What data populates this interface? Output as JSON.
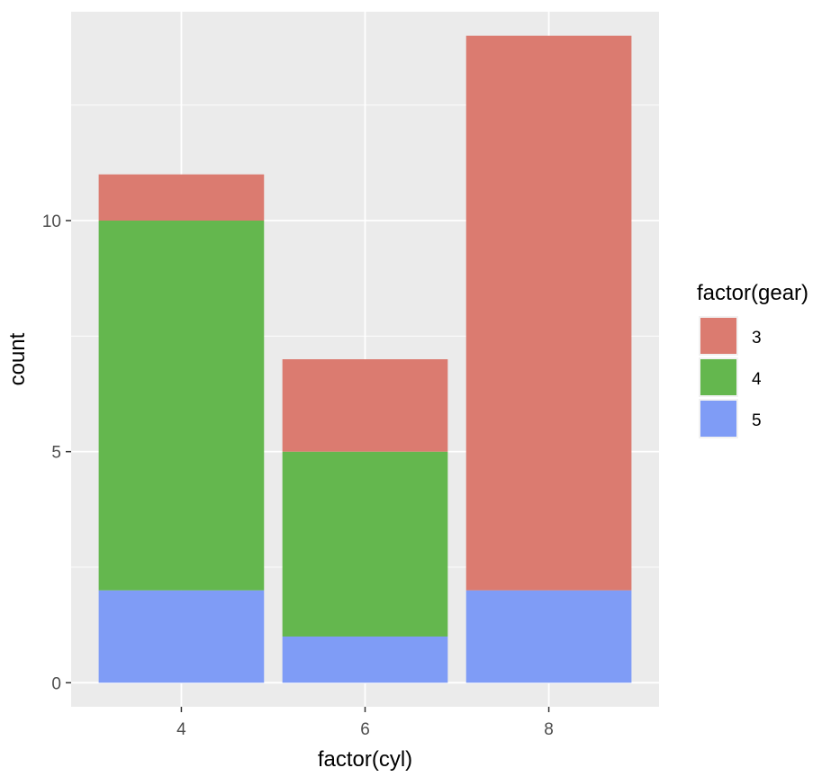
{
  "chart_data": {
    "type": "bar",
    "stacked": true,
    "categories": [
      "4",
      "6",
      "8"
    ],
    "xlabel": "factor(cyl)",
    "ylabel": "count",
    "ylim": [
      -0.52,
      14.52
    ],
    "yticks": [
      0,
      5,
      10
    ],
    "grid": true,
    "legend": {
      "title": "factor(gear)",
      "placement": "right"
    },
    "series": [
      {
        "name": "3",
        "color": "#DB7B70",
        "values": [
          1,
          2,
          12
        ]
      },
      {
        "name": "4",
        "color": "#64B74E",
        "values": [
          8,
          4,
          0
        ]
      },
      {
        "name": "5",
        "color": "#7F9CF6",
        "values": [
          2,
          1,
          2
        ]
      }
    ],
    "stack_order_bottom_to_top": [
      "5",
      "4",
      "3"
    ]
  }
}
